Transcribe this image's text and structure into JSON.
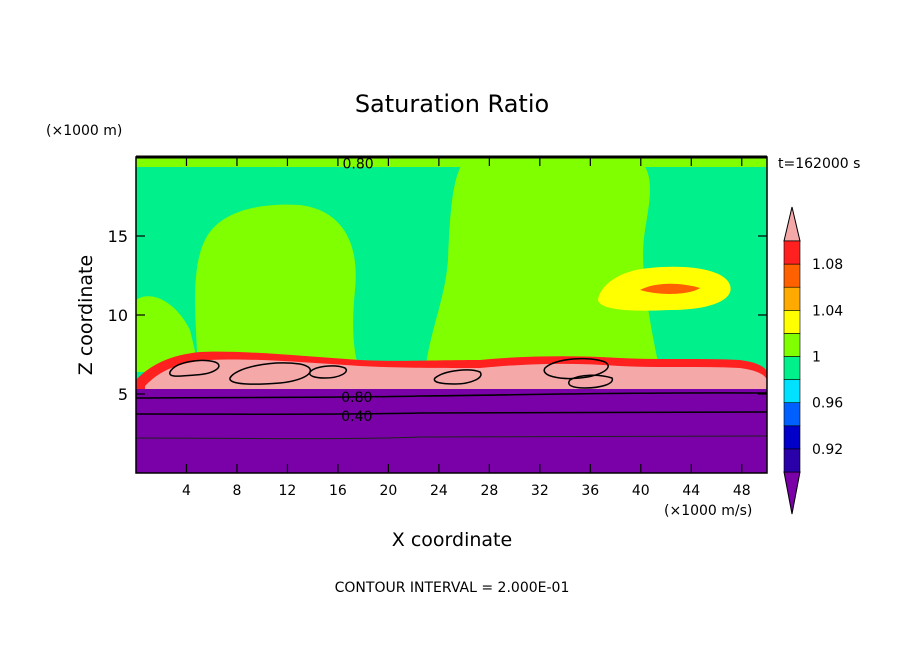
{
  "chart_data": {
    "type": "heatmap",
    "title": "Saturation Ratio",
    "xlabel": "X coordinate",
    "ylabel": "Z coordinate",
    "x_unit": "(×1000 m/s)",
    "y_unit": "(×1000 m)",
    "time_label": "t=162000 s",
    "footer": "CONTOUR INTERVAL = 2.000E-01",
    "xlim": [
      0,
      50
    ],
    "ylim": [
      0,
      20
    ],
    "x_ticks": [
      4,
      8,
      12,
      16,
      20,
      24,
      28,
      32,
      36,
      40,
      44,
      48
    ],
    "y_ticks": [
      5,
      10,
      15
    ],
    "contour_labels": [
      {
        "text": "0.80",
        "x": 17.6,
        "z": 19.6
      },
      {
        "text": "0.80",
        "x": 17.5,
        "z": 4.8
      },
      {
        "text": "0.40",
        "x": 17.5,
        "z": 3.6
      }
    ],
    "colorbar": {
      "labels": [
        "1.08",
        "1.04",
        "1",
        "0.96",
        "0.92"
      ],
      "label_levels": [
        1.08,
        1.04,
        1.0,
        0.96,
        0.92
      ],
      "levels": [
        0.9,
        0.92,
        0.94,
        0.96,
        0.98,
        1.0,
        1.02,
        1.04,
        1.06,
        1.08,
        1.1
      ],
      "colors": [
        "#7a00a8",
        "#2a00a8",
        "#0000c8",
        "#0060ff",
        "#00e0ff",
        "#00f08c",
        "#80ff00",
        "#ffff00",
        "#ffaa00",
        "#ff6000",
        "#ff2020",
        "#f4a8a8"
      ]
    },
    "colors": {
      "under": "#7a00a8",
      "upper_layer": "#00f08c",
      "dome": "#80ff00",
      "cloud_layer": "#f4a8a8",
      "cloud_edge": "#ff2020",
      "supersat_patch": "#ffff00"
    }
  }
}
